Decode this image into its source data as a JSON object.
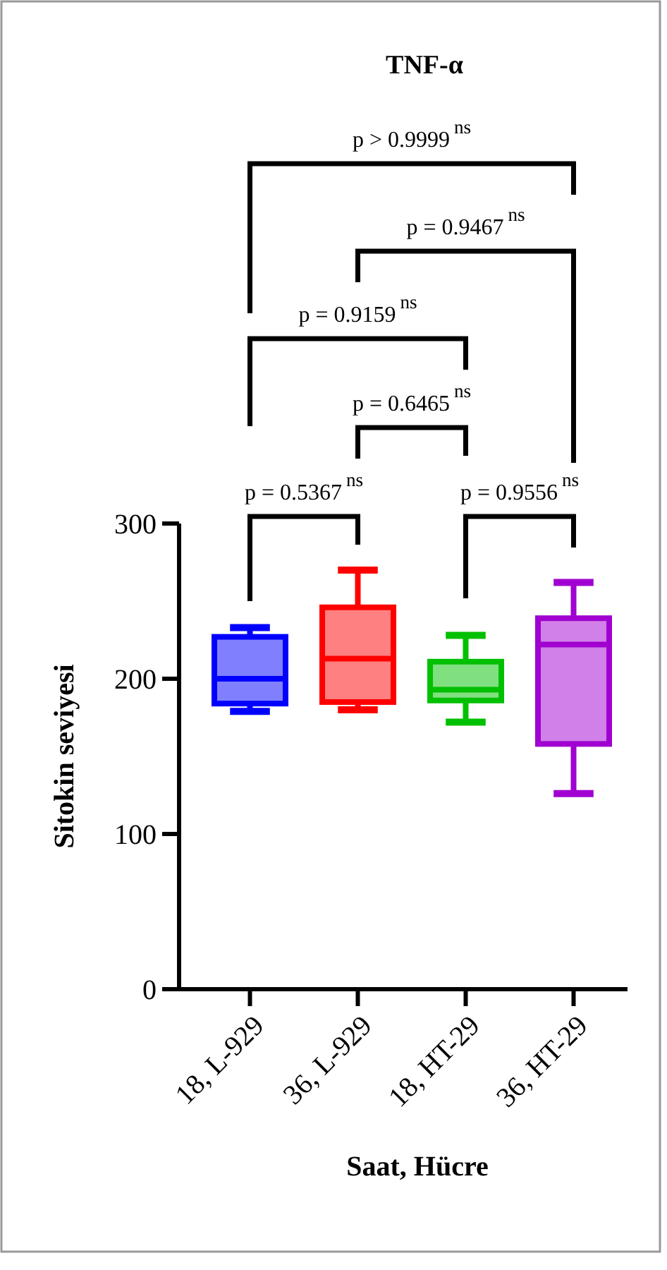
{
  "chart_data": {
    "type": "box",
    "title": "TNF-α",
    "xlabel": "Saat, Hücre",
    "ylabel": "Sitokin seviyesi",
    "categories": [
      "18, L-929",
      "36, L-929",
      "18, HT-29",
      "36, HT-29"
    ],
    "colors": [
      "#0000ff",
      "#ff0000",
      "#00c000",
      "#a000d0"
    ],
    "boxes": [
      {
        "low": 179,
        "q1": 184,
        "median": 200,
        "q3": 227,
        "high": 233
      },
      {
        "low": 180,
        "q1": 185,
        "median": 213,
        "q3": 246,
        "high": 270
      },
      {
        "low": 172,
        "q1": 186,
        "median": 193,
        "q3": 211,
        "high": 228
      },
      {
        "low": 126,
        "q1": 158,
        "median": 222,
        "q3": 239,
        "high": 262
      }
    ],
    "ylim": [
      0,
      300
    ],
    "yticks": [
      0,
      100,
      200,
      300
    ],
    "annotations": [
      "p = 0.5367$^{ns}$",
      "p = 0.9556$^{ns}$",
      "p = 0.6465$^{ns}$",
      "p = 0.9159$^{ns}$",
      "p = 0.9467$^{ns}$",
      "p > 0.9999$^{ns}$"
    ]
  }
}
